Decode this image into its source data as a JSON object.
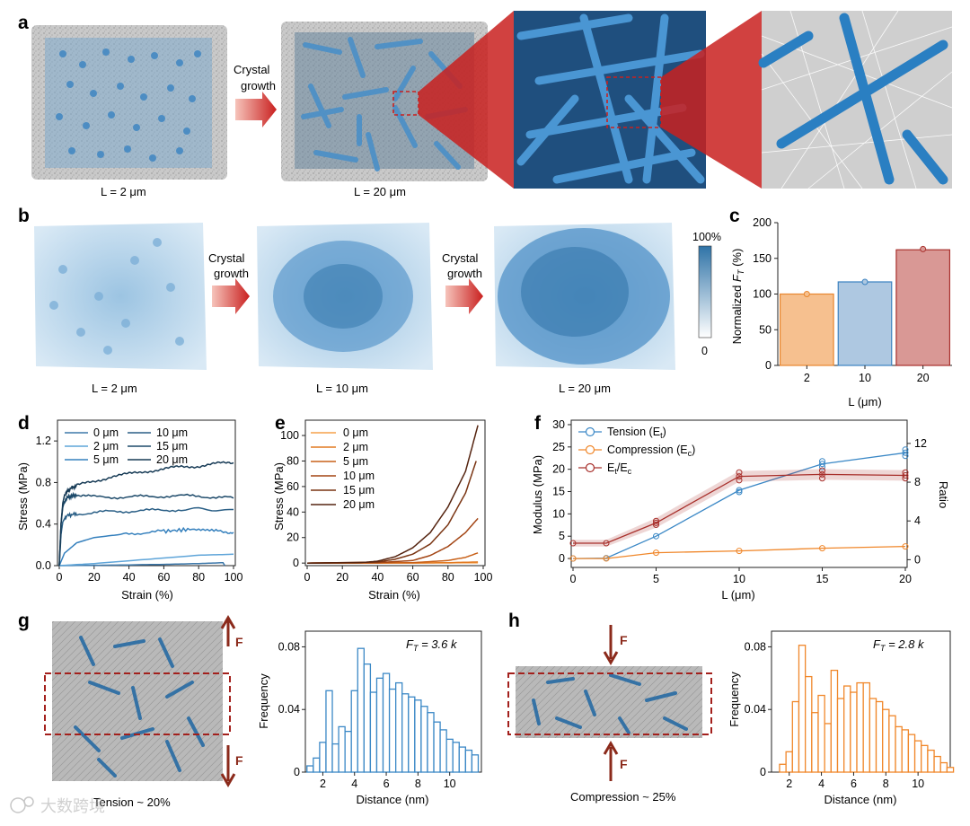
{
  "panels": {
    "a": {
      "label": "a",
      "arrow_text_1": "Crystal",
      "arrow_text_2": "growth",
      "caption_1": "L = 2 μm",
      "caption_2": "L = 20 μm"
    },
    "b": {
      "label": "b",
      "arrow1_text_1": "Crystal",
      "arrow1_text_2": "growth",
      "arrow2_text_1": "Crystal",
      "arrow2_text_2": "growth",
      "caption_1": "L = 2 μm",
      "caption_2": "L = 10 μm",
      "caption_3": "L = 20 μm",
      "colorbar_max": "100%",
      "colorbar_min": "0"
    },
    "g": {
      "label": "g",
      "force_top": "F",
      "force_bottom": "F",
      "caption": "Tension ~ 20%",
      "annotation": "F",
      "annotation_sub": "T",
      "annotation_value": " = 3.6 k"
    },
    "h": {
      "label": "h",
      "force_top": "F",
      "force_bottom": "F",
      "caption": "Compression ~ 25%",
      "annotation": "F",
      "annotation_sub": "T",
      "annotation_value": " = 2.8 k"
    }
  },
  "watermark": "大数跨境",
  "colors": {
    "blue": "#3b88c6",
    "orange": "#f0872a",
    "darkred": "#a8302c",
    "arrow_red": "#c9201f",
    "force": "#8b2a1b"
  },
  "chart_data": [
    {
      "id": "c",
      "label": "c",
      "type": "bar",
      "categories": [
        "2",
        "10",
        "20"
      ],
      "values": [
        100,
        117,
        162
      ],
      "dots": [
        100,
        117,
        163
      ],
      "fill_colors": [
        "#f6c08f",
        "#aec8e1",
        "#d99895"
      ],
      "edge_colors": [
        "#e8862e",
        "#3b82c0",
        "#a8302c"
      ],
      "xlabel": "L (μm)",
      "ylabel_prefix": "Normalized ",
      "ylabel_italic": "F",
      "ylabel_sub": "T",
      "ylabel_suffix": " (%)",
      "ylim": [
        0,
        200
      ],
      "yticks": [
        "0",
        "50",
        "100",
        "150",
        "200"
      ]
    },
    {
      "id": "d",
      "label": "d",
      "type": "line",
      "xlabel": "Strain (%)",
      "ylabel": "Stress (MPa)",
      "xlim": [
        0,
        100
      ],
      "ylim": [
        0,
        1.4
      ],
      "xticks": [
        "0",
        "20",
        "40",
        "60",
        "80",
        "100"
      ],
      "yticks": [
        "0.0",
        "0.4",
        "0.8",
        "1.2"
      ],
      "series": [
        {
          "name": "0 μm",
          "color": "#3d78aa",
          "points": [
            [
              0,
              0
            ],
            [
              30,
              0.005
            ],
            [
              60,
              0.012
            ],
            [
              80,
              0.02
            ],
            [
              94,
              0.028
            ],
            [
              95,
              0.0
            ]
          ]
        },
        {
          "name": "2 μm",
          "color": "#5fa5d9",
          "points": [
            [
              0,
              0
            ],
            [
              20,
              0.02
            ],
            [
              50,
              0.06
            ],
            [
              80,
              0.1
            ],
            [
              100,
              0.11
            ]
          ]
        },
        {
          "name": "5 μm",
          "color": "#3580bd",
          "points": [
            [
              0,
              0
            ],
            [
              3,
              0.12
            ],
            [
              10,
              0.22
            ],
            [
              20,
              0.27
            ],
            [
              40,
              0.31
            ],
            [
              60,
              0.33
            ],
            [
              75,
              0.35
            ],
            [
              90,
              0.34
            ],
            [
              100,
              0.32
            ]
          ]
        },
        {
          "name": "10 μm",
          "color": "#2a5f86",
          "points": [
            [
              0,
              0
            ],
            [
              1,
              0.3
            ],
            [
              2,
              0.42
            ],
            [
              4,
              0.48
            ],
            [
              10,
              0.5
            ],
            [
              30,
              0.52
            ],
            [
              50,
              0.53
            ],
            [
              70,
              0.54
            ],
            [
              100,
              0.54
            ]
          ]
        },
        {
          "name": "15 μm",
          "color": "#1d4a6a",
          "points": [
            [
              0,
              0
            ],
            [
              1,
              0.4
            ],
            [
              2,
              0.56
            ],
            [
              3,
              0.62
            ],
            [
              5,
              0.66
            ],
            [
              10,
              0.68
            ],
            [
              20,
              0.66
            ],
            [
              40,
              0.66
            ],
            [
              60,
              0.67
            ],
            [
              80,
              0.67
            ],
            [
              100,
              0.65
            ]
          ]
        },
        {
          "name": "20 μm",
          "color": "#163a55",
          "points": [
            [
              0,
              0
            ],
            [
              1,
              0.4
            ],
            [
              2,
              0.6
            ],
            [
              3,
              0.68
            ],
            [
              6,
              0.74
            ],
            [
              10,
              0.77
            ],
            [
              20,
              0.81
            ],
            [
              30,
              0.86
            ],
            [
              40,
              0.88
            ],
            [
              50,
              0.91
            ],
            [
              60,
              0.93
            ],
            [
              70,
              0.95
            ],
            [
              80,
              0.96
            ],
            [
              90,
              0.98
            ],
            [
              100,
              0.99
            ]
          ]
        }
      ],
      "legend_left": [
        "0 μm",
        "2 μm",
        "5 μm"
      ],
      "legend_right": [
        "10 μm",
        "15 μm",
        "20 μm"
      ]
    },
    {
      "id": "e",
      "label": "e",
      "type": "line",
      "xlabel": "Strain (%)",
      "ylabel": "Stress (MPa)",
      "xlim": [
        0,
        100
      ],
      "ylim": [
        -2,
        112
      ],
      "xticks": [
        "0",
        "20",
        "40",
        "60",
        "80",
        "100"
      ],
      "yticks": [
        "0",
        "20",
        "40",
        "60",
        "80",
        "100"
      ],
      "series": [
        {
          "name": "0 μm",
          "color": "#f6a04a",
          "points": [
            [
              0,
              0
            ],
            [
              60,
              0.05
            ],
            [
              97,
              0.2
            ]
          ]
        },
        {
          "name": "2 μm",
          "color": "#e27a22",
          "points": [
            [
              0,
              0
            ],
            [
              60,
              0.1
            ],
            [
              80,
              0.3
            ],
            [
              97,
              0.9
            ]
          ]
        },
        {
          "name": "5 μm",
          "color": "#c86018",
          "points": [
            [
              0,
              0
            ],
            [
              60,
              0.3
            ],
            [
              80,
              2
            ],
            [
              90,
              4.5
            ],
            [
              97,
              8
            ]
          ]
        },
        {
          "name": "10 μm",
          "color": "#a34514",
          "points": [
            [
              0,
              0
            ],
            [
              40,
              0.3
            ],
            [
              60,
              2
            ],
            [
              70,
              6
            ],
            [
              80,
              13
            ],
            [
              90,
              24
            ],
            [
              97,
              35
            ]
          ]
        },
        {
          "name": "15 μm",
          "color": "#7a3412",
          "points": [
            [
              0,
              0
            ],
            [
              40,
              0.8
            ],
            [
              50,
              3
            ],
            [
              60,
              7
            ],
            [
              70,
              15
            ],
            [
              80,
              30
            ],
            [
              90,
              55
            ],
            [
              96,
              80
            ]
          ]
        },
        {
          "name": "20 μm",
          "color": "#552410",
          "points": [
            [
              0,
              0
            ],
            [
              30,
              0.3
            ],
            [
              40,
              1.5
            ],
            [
              50,
              5
            ],
            [
              60,
              12
            ],
            [
              70,
              24
            ],
            [
              80,
              44
            ],
            [
              90,
              72
            ],
            [
              97,
              108
            ]
          ]
        }
      ]
    },
    {
      "id": "f",
      "label": "f",
      "type": "line",
      "xlabel": "L (μm)",
      "ylabel_left": "Modulus (MPa)",
      "ylabel_right": "Ratio",
      "xlim": [
        0,
        20
      ],
      "ylim_left": [
        -2,
        31
      ],
      "ylim_right": [
        -0.8,
        14.4
      ],
      "xticks": [
        "0",
        "5",
        "10",
        "15",
        "20"
      ],
      "yticks_left": [
        "0",
        "5",
        "10",
        "15",
        "20",
        "25",
        "30"
      ],
      "yticks_right": [
        "0",
        "4",
        "8",
        "12"
      ],
      "x": [
        0,
        2,
        5,
        10,
        15,
        20
      ],
      "series": [
        {
          "name": "Tension (E",
          "sub": "t",
          "tail": ")",
          "color": "#3b88c6",
          "axis": "left",
          "values": [
            0,
            0.1,
            5,
            15.3,
            21.2,
            23.7
          ],
          "extra_points": [
            [
              10,
              14.9
            ],
            [
              15,
              20.5
            ],
            [
              15,
              21.8
            ],
            [
              20,
              23
            ],
            [
              20,
              24.4
            ]
          ]
        },
        {
          "name": "Compression (E",
          "sub": "c",
          "tail": ")",
          "color": "#f0872a",
          "axis": "left",
          "values": [
            0,
            0,
            1.3,
            1.7,
            2.3,
            2.7
          ],
          "extra_points": []
        },
        {
          "name": "E",
          "sub": "t",
          "mid": "/E",
          "sub2": "c",
          "color": "#a8302c",
          "axis": "right",
          "values": [
            1.7,
            1.7,
            3.8,
            8.6,
            8.8,
            8.7
          ],
          "band": [
            0.35,
            0.35,
            0.5,
            0.55,
            0.55,
            0.55
          ],
          "extra_points": [
            [
              5,
              3.6
            ],
            [
              5,
              4.0
            ],
            [
              10,
              8.2
            ],
            [
              10,
              9.0
            ],
            [
              15,
              8.4
            ],
            [
              15,
              9.2
            ],
            [
              20,
              8.4
            ],
            [
              20,
              9.0
            ]
          ]
        }
      ]
    },
    {
      "id": "g_hist",
      "type": "bar",
      "histogram": true,
      "xlabel": "Distance (nm)",
      "ylabel": "Frequency",
      "color": "#3b88c6",
      "bin_start": 1.0,
      "bin_width": 0.4,
      "values": [
        0.004,
        0.009,
        0.019,
        0.052,
        0.018,
        0.029,
        0.026,
        0.052,
        0.079,
        0.069,
        0.051,
        0.06,
        0.063,
        0.053,
        0.057,
        0.05,
        0.048,
        0.046,
        0.042,
        0.038,
        0.032,
        0.027,
        0.021,
        0.019,
        0.016,
        0.014,
        0.011
      ],
      "xlim": [
        0.9,
        12.0
      ],
      "ylim": [
        0,
        0.09
      ],
      "xticks": [
        2,
        4,
        6,
        8,
        10
      ],
      "yticks": [
        0,
        0.04,
        0.08
      ],
      "ytick_labels": [
        "0",
        "0.04",
        "0.08"
      ]
    },
    {
      "id": "h_hist",
      "type": "bar",
      "histogram": true,
      "xlabel": "Distance (nm)",
      "ylabel": "Frequency",
      "color": "#f0872a",
      "bin_start": 1.4,
      "bin_width": 0.4,
      "values": [
        0.005,
        0.013,
        0.045,
        0.081,
        0.061,
        0.038,
        0.049,
        0.031,
        0.065,
        0.047,
        0.055,
        0.051,
        0.057,
        0.057,
        0.047,
        0.045,
        0.04,
        0.036,
        0.029,
        0.027,
        0.024,
        0.02,
        0.017,
        0.014,
        0.01,
        0.006,
        0.003
      ],
      "xlim": [
        0.9,
        12.0
      ],
      "ylim": [
        0,
        0.09
      ],
      "xticks": [
        2,
        4,
        6,
        8,
        10
      ],
      "yticks": [
        0,
        0.04,
        0.08
      ],
      "ytick_labels": [
        "0",
        "0.04",
        "0.08"
      ]
    }
  ]
}
